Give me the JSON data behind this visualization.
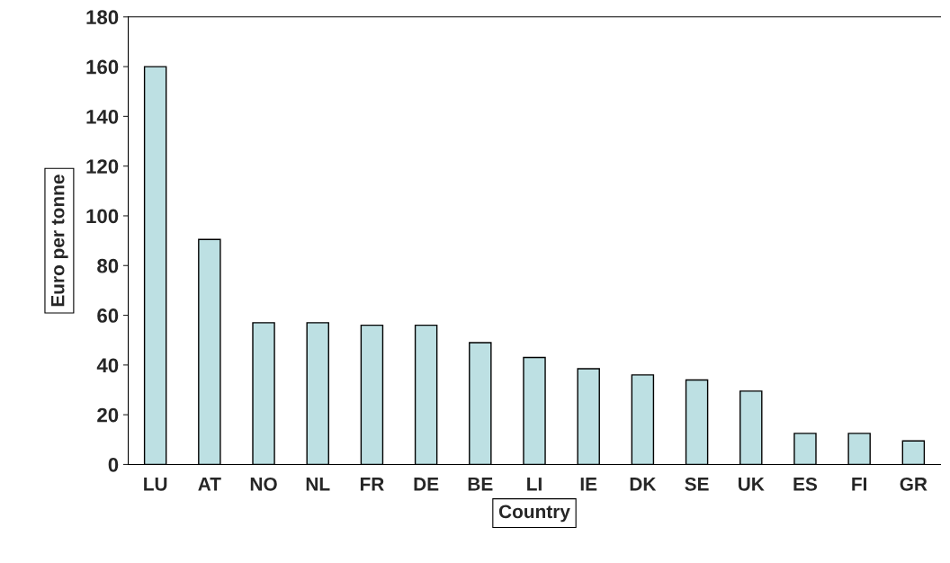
{
  "chart_data": {
    "type": "bar",
    "xlabel": "Country",
    "ylabel": "Euro per tonne",
    "categories": [
      "LU",
      "AT",
      "NO",
      "NL",
      "FR",
      "DE",
      "BE",
      "LI",
      "IE",
      "DK",
      "SE",
      "UK",
      "ES",
      "FI",
      "GR"
    ],
    "values": [
      160,
      90.5,
      57,
      57,
      56,
      56,
      49,
      43,
      38.5,
      36,
      34,
      29.5,
      12.5,
      12.5,
      9.5
    ],
    "color": "#bde0e3",
    "ylim": [
      0,
      180
    ],
    "yticks": [
      0,
      20,
      40,
      60,
      80,
      100,
      120,
      140,
      160,
      180
    ],
    "grid": false
  }
}
